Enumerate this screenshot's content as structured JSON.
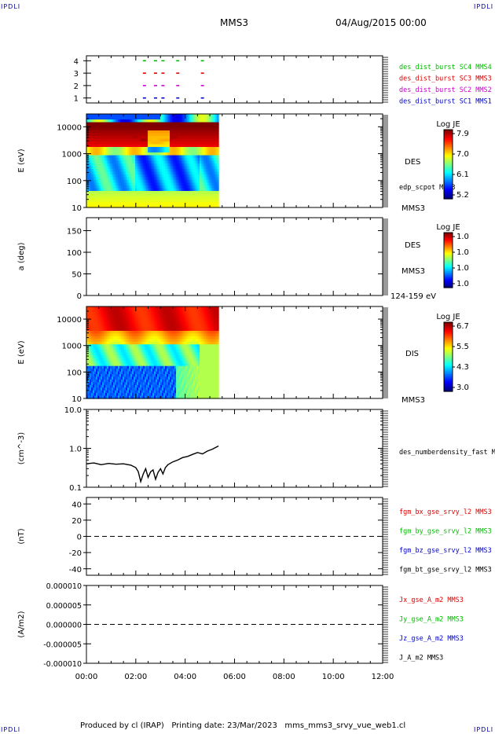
{
  "corner_marks": {
    "tl": "IPDLI",
    "tr": "IPDLI",
    "bl": "IPDLI",
    "br": "IPDLI"
  },
  "header": {
    "spacecraft": "MMS3",
    "datetime": "04/Aug/2015 00:00"
  },
  "footer": {
    "text": "Produced by cl (IRAP)   Printing date: 23/Mar/2023   mms_mms3_srvy_vue_web1.cl"
  },
  "time_axis": {
    "ticks": [
      "00:00",
      "02:00",
      "04:00",
      "06:00",
      "08:00",
      "10:00",
      "12:00"
    ],
    "range_hours": [
      0,
      12
    ]
  },
  "chart_data": [
    {
      "type": "scatter",
      "panel": "burst availability",
      "ylim": [
        0.6,
        4.4
      ],
      "yticks": [
        "1",
        "2",
        "3",
        "4"
      ],
      "series": [
        {
          "name": "des_dist_burst SC1 MMS1",
          "color": "#0000cc",
          "y": 1,
          "x_hours": [
            2.35,
            2.8,
            3.1,
            3.7,
            4.7
          ]
        },
        {
          "name": "des_dist_burst SC2 MMS2",
          "color": "#cc00cc",
          "y": 2,
          "x_hours": [
            2.35,
            2.8,
            3.1,
            3.7,
            4.7
          ]
        },
        {
          "name": "des_dist_burst SC3 MMS3",
          "color": "#dd0000",
          "y": 3,
          "x_hours": [
            2.35,
            2.8,
            3.1,
            3.7,
            4.7
          ]
        },
        {
          "name": "des_dist_burst SC4 MMS4",
          "color": "#00bb00",
          "y": 4,
          "x_hours": [
            2.35,
            2.8,
            3.1,
            3.7,
            4.7
          ]
        }
      ]
    },
    {
      "type": "heatmap",
      "panel": "DES energy spectrogram",
      "ylabel": "E (eV)",
      "yscale": "log",
      "ylim": [
        10,
        30000
      ],
      "yticks": [
        "10",
        "100",
        "1000",
        "10000"
      ],
      "label": "DES",
      "potential_label": "edp_scpot MMS3",
      "bottom_label": "MMS3",
      "colorbar": {
        "title": "Log JE",
        "ticks": [
          "7.9",
          "7.0",
          "6.1",
          "5.2"
        ],
        "range": [
          5.2,
          8.0
        ]
      },
      "x_end_hours": 5.35
    },
    {
      "type": "heatmap",
      "panel": "DES pitch angle",
      "ylabel": "a (deg)",
      "ylim": [
        0,
        180
      ],
      "yticks": [
        "0",
        "50",
        "100",
        "150"
      ],
      "label": "DES",
      "bottom_label": "MMS3",
      "energy_label": "124-159 eV",
      "colorbar": {
        "title": "Log JE",
        "ticks": [
          "1.0",
          "1.0",
          "1.0",
          "1.0"
        ]
      }
    },
    {
      "type": "heatmap",
      "panel": "DIS energy spectrogram",
      "ylabel": "E (eV)",
      "yscale": "log",
      "ylim": [
        10,
        30000
      ],
      "yticks": [
        "10",
        "100",
        "1000",
        "10000"
      ],
      "label": "DIS",
      "bottom_label": "MMS3",
      "colorbar": {
        "title": "Log JE",
        "ticks": [
          "6.7",
          "5.5",
          "4.3",
          "3.0"
        ],
        "range": [
          3.0,
          6.9
        ]
      },
      "x_end_hours": 5.35
    },
    {
      "type": "line",
      "panel": "density",
      "ylabel": "(cm^-3)",
      "yscale": "log",
      "ylim": [
        0.1,
        10
      ],
      "yticks": [
        "0.1",
        "1.0",
        "10.0"
      ],
      "series": [
        {
          "name": "des_numberdensity_fast M",
          "color": "#000000",
          "x_hours": [
            0,
            0.3,
            0.6,
            0.9,
            1.2,
            1.5,
            1.8,
            2.0,
            2.1,
            2.2,
            2.3,
            2.4,
            2.5,
            2.6,
            2.7,
            2.8,
            2.9,
            3.0,
            3.1,
            3.2,
            3.3,
            3.5,
            3.7,
            3.9,
            4.1,
            4.3,
            4.5,
            4.7,
            4.9,
            5.1,
            5.35
          ],
          "y": [
            0.4,
            0.42,
            0.38,
            0.41,
            0.39,
            0.4,
            0.37,
            0.32,
            0.25,
            0.14,
            0.22,
            0.3,
            0.18,
            0.25,
            0.28,
            0.16,
            0.24,
            0.3,
            0.22,
            0.32,
            0.38,
            0.45,
            0.5,
            0.58,
            0.62,
            0.7,
            0.78,
            0.72,
            0.85,
            0.95,
            1.15
          ]
        }
      ]
    },
    {
      "type": "line",
      "panel": "magnetic field",
      "ylabel": "(nT)",
      "ylim": [
        -48,
        48
      ],
      "yticks": [
        "-40",
        "-20",
        "0",
        "20",
        "40"
      ],
      "series": [
        {
          "name": "fgm_bx_gse_srvy_l2 MMS3",
          "color": "#dd0000"
        },
        {
          "name": "fgm_by_gse_srvy_l2 MMS3",
          "color": "#00bb00"
        },
        {
          "name": "fgm_bz_gse_srvy_l2 MMS3",
          "color": "#0000cc"
        },
        {
          "name": "fgm_bt_gse_srvy_l2 MMS3",
          "color": "#000000"
        }
      ]
    },
    {
      "type": "line",
      "panel": "current density",
      "ylabel": "(A/m2)",
      "ylim": [
        -1e-05,
        1e-05
      ],
      "yticks": [
        "-0.000010",
        "-0.000005",
        "0.000000",
        "0.000005",
        "0.000010"
      ],
      "series": [
        {
          "name": "Jx_gse_A_m2 MMS3",
          "color": "#dd0000"
        },
        {
          "name": "Jy_gse_A_m2 MMS3",
          "color": "#00bb00"
        },
        {
          "name": "Jz_gse_A_m2 MMS3",
          "color": "#0000cc"
        },
        {
          "name": "J_A_m2 MMS3",
          "color": "#000000"
        }
      ]
    }
  ]
}
